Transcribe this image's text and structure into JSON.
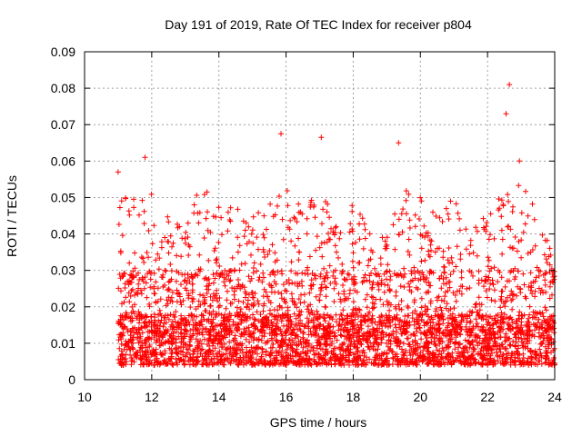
{
  "chart_data": {
    "type": "scatter",
    "title": "Day 191 of 2019, Rate Of TEC Index for receiver p804",
    "xlabel": "GPS time / hours",
    "ylabel": "ROTI / TECUs",
    "xlim": [
      10,
      24
    ],
    "ylim": [
      0,
      0.09
    ],
    "x_ticks": [
      10,
      12,
      14,
      16,
      18,
      20,
      22,
      24
    ],
    "x_tick_labels": [
      "10",
      "12",
      "14",
      "16",
      "18",
      "20",
      "22",
      "24"
    ],
    "y_ticks": [
      0,
      0.01,
      0.02,
      0.03,
      0.04,
      0.05,
      0.06,
      0.07,
      0.08,
      0.09
    ],
    "y_tick_labels": [
      "0",
      "0.01",
      "0.02",
      "0.03",
      "0.04",
      "0.05",
      "0.06",
      "0.07",
      "0.08",
      "0.09"
    ],
    "grid": true,
    "marker": "+",
    "series_color": "#ff0000",
    "series": [
      {
        "name": "ROTI",
        "x_start": 11.0,
        "x_end": 24.0,
        "notable_points": [
          {
            "x": 22.65,
            "y": 0.081
          },
          {
            "x": 22.55,
            "y": 0.073
          },
          {
            "x": 15.85,
            "y": 0.0675
          },
          {
            "x": 17.05,
            "y": 0.0665
          },
          {
            "x": 19.35,
            "y": 0.065
          },
          {
            "x": 11.8,
            "y": 0.061
          },
          {
            "x": 11.0,
            "y": 0.057
          },
          {
            "x": 22.95,
            "y": 0.06
          }
        ],
        "envelope": [
          {
            "x": 11.0,
            "peak": 0.053
          },
          {
            "x": 11.5,
            "peak": 0.05
          },
          {
            "x": 12.0,
            "peak": 0.052
          },
          {
            "x": 12.5,
            "peak": 0.045
          },
          {
            "x": 13.0,
            "peak": 0.042
          },
          {
            "x": 13.5,
            "peak": 0.055
          },
          {
            "x": 14.0,
            "peak": 0.05
          },
          {
            "x": 14.5,
            "peak": 0.048
          },
          {
            "x": 15.0,
            "peak": 0.045
          },
          {
            "x": 15.5,
            "peak": 0.052
          },
          {
            "x": 16.0,
            "peak": 0.055
          },
          {
            "x": 16.5,
            "peak": 0.048
          },
          {
            "x": 17.0,
            "peak": 0.052
          },
          {
            "x": 17.5,
            "peak": 0.045
          },
          {
            "x": 18.0,
            "peak": 0.048
          },
          {
            "x": 18.5,
            "peak": 0.042
          },
          {
            "x": 19.0,
            "peak": 0.04
          },
          {
            "x": 19.5,
            "peak": 0.055
          },
          {
            "x": 20.0,
            "peak": 0.05
          },
          {
            "x": 20.5,
            "peak": 0.048
          },
          {
            "x": 21.0,
            "peak": 0.05
          },
          {
            "x": 21.5,
            "peak": 0.042
          },
          {
            "x": 22.0,
            "peak": 0.045
          },
          {
            "x": 22.5,
            "peak": 0.062
          },
          {
            "x": 23.0,
            "peak": 0.055
          },
          {
            "x": 23.5,
            "peak": 0.045
          },
          {
            "x": 24.0,
            "peak": 0.035
          }
        ],
        "baseline_typical": 0.011,
        "baseline_min": 0.004
      }
    ]
  }
}
